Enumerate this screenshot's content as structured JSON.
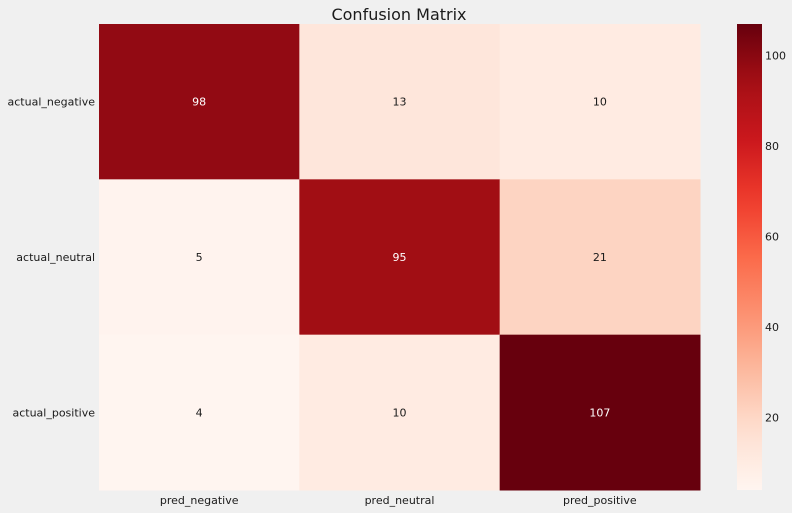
{
  "chart_data": {
    "type": "heatmap",
    "title": "Confusion Matrix",
    "xlabel": "",
    "ylabel": "",
    "x_categories": [
      "pred_negative",
      "pred_neutral",
      "pred_positive"
    ],
    "y_categories": [
      "actual_negative",
      "actual_neutral",
      "actual_positive"
    ],
    "values": [
      [
        98,
        13,
        10
      ],
      [
        5,
        95,
        21
      ],
      [
        4,
        10,
        107
      ]
    ],
    "colormap": "Reds",
    "color_range": [
      4,
      107
    ],
    "colorbar_ticks": [
      20,
      40,
      60,
      80,
      100
    ],
    "grid": false
  },
  "colors": {
    "background": "#f0f0f0",
    "dark_text": "#1a1a1a",
    "light_text": "#ffffff"
  }
}
